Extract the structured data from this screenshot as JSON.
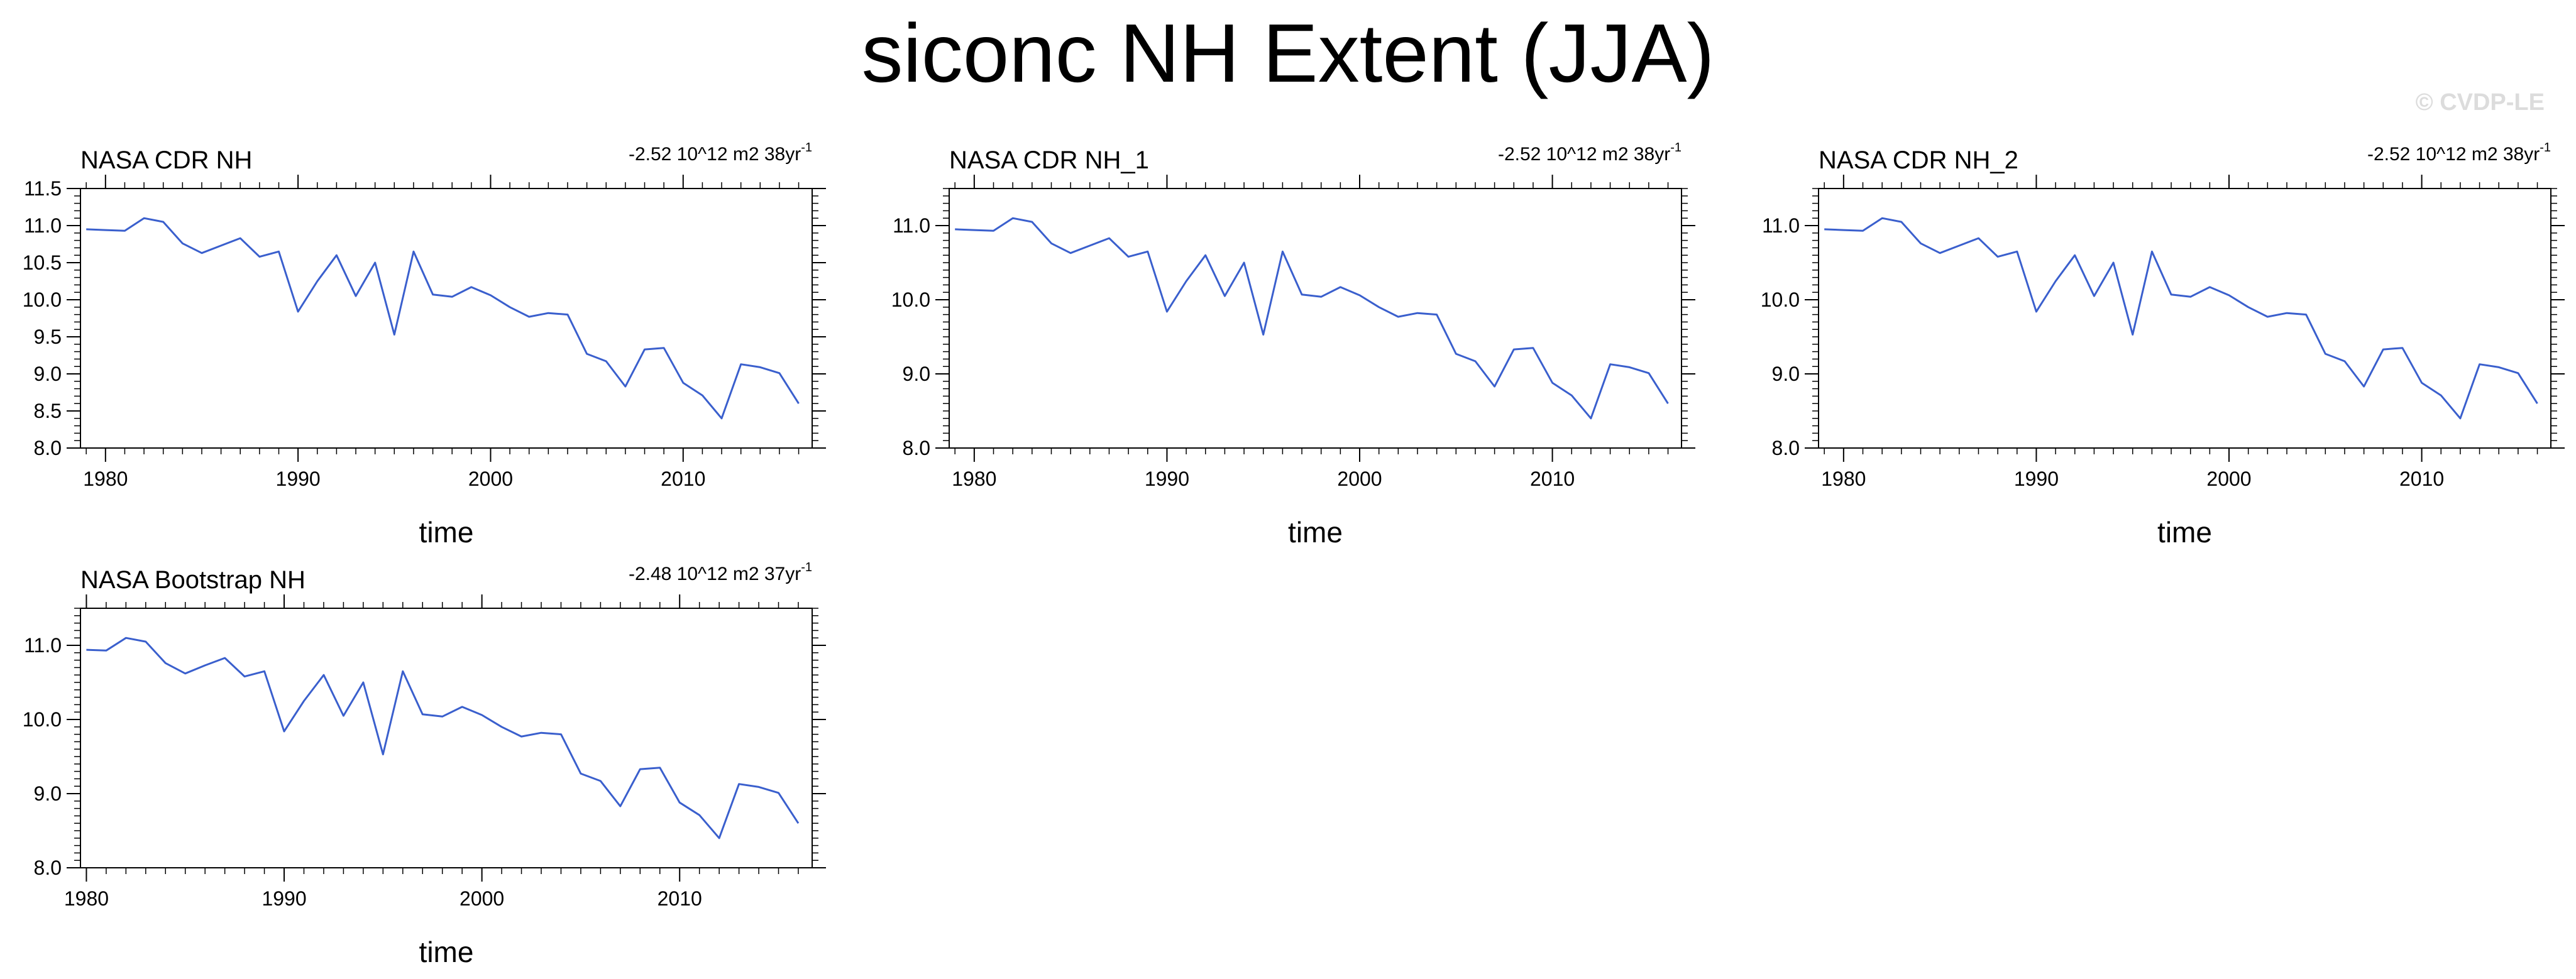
{
  "title": "siconc NH Extent (JJA)",
  "watermark": "© CVDP-LE",
  "colors": {
    "line": "#3a5fcd",
    "axis": "#000000"
  },
  "chart_data": [
    {
      "type": "line",
      "title": "NASA CDR NH",
      "trend_text": "-2.52 10^12 m2 38yr",
      "trend_sup": "-1",
      "xlabel": "time",
      "ylabel": "",
      "xlim": [
        1978.7,
        2016.7
      ],
      "ylim": [
        8.0,
        11.5
      ],
      "yticks": [
        8.0,
        8.5,
        9.0,
        9.5,
        10.0,
        10.5,
        11.0,
        11.5
      ],
      "xticks": [
        1980,
        1990,
        2000,
        2010
      ],
      "series": [
        {
          "x": [
            1979,
            1980,
            1981,
            1982,
            1983,
            1984,
            1985,
            1986,
            1987,
            1988,
            1989,
            1990,
            1991,
            1992,
            1993,
            1994,
            1995,
            1996,
            1997,
            1998,
            1999,
            2000,
            2001,
            2002,
            2003,
            2004,
            2005,
            2006,
            2007,
            2008,
            2009,
            2010,
            2011,
            2012,
            2013,
            2014,
            2015,
            2016
          ],
          "values": [
            10.95,
            10.94,
            10.93,
            11.1,
            11.05,
            10.76,
            10.63,
            10.73,
            10.83,
            10.58,
            10.65,
            9.84,
            10.25,
            10.6,
            10.05,
            10.5,
            9.53,
            10.65,
            10.07,
            10.04,
            10.17,
            10.06,
            9.9,
            9.77,
            9.82,
            9.8,
            9.27,
            9.17,
            8.83,
            9.33,
            9.35,
            8.88,
            8.71,
            8.4,
            9.13,
            9.09,
            9.01,
            8.6
          ]
        }
      ]
    },
    {
      "type": "line",
      "title": "NASA CDR NH_1",
      "trend_text": "-2.52 10^12 m2 38yr",
      "trend_sup": "-1",
      "xlabel": "time",
      "ylabel": "",
      "xlim": [
        1978.7,
        2016.7
      ],
      "ylim": [
        8.0,
        11.5
      ],
      "yticks": [
        8.0,
        9.0,
        10.0,
        11.0
      ],
      "xticks": [
        1980,
        1990,
        2000,
        2010
      ],
      "series": [
        {
          "x": [
            1979,
            1980,
            1981,
            1982,
            1983,
            1984,
            1985,
            1986,
            1987,
            1988,
            1989,
            1990,
            1991,
            1992,
            1993,
            1994,
            1995,
            1996,
            1997,
            1998,
            1999,
            2000,
            2001,
            2002,
            2003,
            2004,
            2005,
            2006,
            2007,
            2008,
            2009,
            2010,
            2011,
            2012,
            2013,
            2014,
            2015,
            2016
          ],
          "values": [
            10.95,
            10.94,
            10.93,
            11.1,
            11.05,
            10.76,
            10.63,
            10.73,
            10.83,
            10.58,
            10.65,
            9.84,
            10.25,
            10.6,
            10.05,
            10.5,
            9.53,
            10.65,
            10.07,
            10.04,
            10.17,
            10.06,
            9.9,
            9.77,
            9.82,
            9.8,
            9.27,
            9.17,
            8.83,
            9.33,
            9.35,
            8.88,
            8.71,
            8.4,
            9.13,
            9.09,
            9.01,
            8.6
          ]
        }
      ]
    },
    {
      "type": "line",
      "title": "NASA CDR NH_2",
      "trend_text": "-2.52 10^12 m2 38yr",
      "trend_sup": "-1",
      "xlabel": "time",
      "ylabel": "",
      "xlim": [
        1978.7,
        2016.7
      ],
      "ylim": [
        8.0,
        11.5
      ],
      "yticks": [
        8.0,
        9.0,
        10.0,
        11.0
      ],
      "xticks": [
        1980,
        1990,
        2000,
        2010
      ],
      "series": [
        {
          "x": [
            1979,
            1980,
            1981,
            1982,
            1983,
            1984,
            1985,
            1986,
            1987,
            1988,
            1989,
            1990,
            1991,
            1992,
            1993,
            1994,
            1995,
            1996,
            1997,
            1998,
            1999,
            2000,
            2001,
            2002,
            2003,
            2004,
            2005,
            2006,
            2007,
            2008,
            2009,
            2010,
            2011,
            2012,
            2013,
            2014,
            2015,
            2016
          ],
          "values": [
            10.95,
            10.94,
            10.93,
            11.1,
            11.05,
            10.76,
            10.63,
            10.73,
            10.83,
            10.58,
            10.65,
            9.84,
            10.25,
            10.6,
            10.05,
            10.5,
            9.53,
            10.65,
            10.07,
            10.04,
            10.17,
            10.06,
            9.9,
            9.77,
            9.82,
            9.8,
            9.27,
            9.17,
            8.83,
            9.33,
            9.35,
            8.88,
            8.71,
            8.4,
            9.13,
            9.09,
            9.01,
            8.6
          ]
        }
      ]
    },
    {
      "type": "line",
      "title": "NASA Bootstrap NH",
      "trend_text": "-2.48 10^12 m2 37yr",
      "trend_sup": "-1",
      "xlabel": "time",
      "ylabel": "",
      "xlim": [
        1979.7,
        2016.7
      ],
      "ylim": [
        8.0,
        11.5
      ],
      "yticks": [
        8.0,
        9.0,
        10.0,
        11.0
      ],
      "xticks": [
        1980,
        1990,
        2000,
        2010
      ],
      "series": [
        {
          "x": [
            1980,
            1981,
            1982,
            1983,
            1984,
            1985,
            1986,
            1987,
            1988,
            1989,
            1990,
            1991,
            1992,
            1993,
            1994,
            1995,
            1996,
            1997,
            1998,
            1999,
            2000,
            2001,
            2002,
            2003,
            2004,
            2005,
            2006,
            2007,
            2008,
            2009,
            2010,
            2011,
            2012,
            2013,
            2014,
            2015,
            2016
          ],
          "values": [
            10.94,
            10.93,
            11.1,
            11.05,
            10.76,
            10.62,
            10.73,
            10.83,
            10.58,
            10.65,
            9.84,
            10.25,
            10.6,
            10.05,
            10.5,
            9.53,
            10.65,
            10.07,
            10.04,
            10.17,
            10.06,
            9.9,
            9.77,
            9.82,
            9.8,
            9.27,
            9.17,
            8.83,
            9.33,
            9.35,
            8.88,
            8.71,
            8.4,
            9.13,
            9.09,
            9.01,
            8.6
          ]
        }
      ]
    }
  ]
}
